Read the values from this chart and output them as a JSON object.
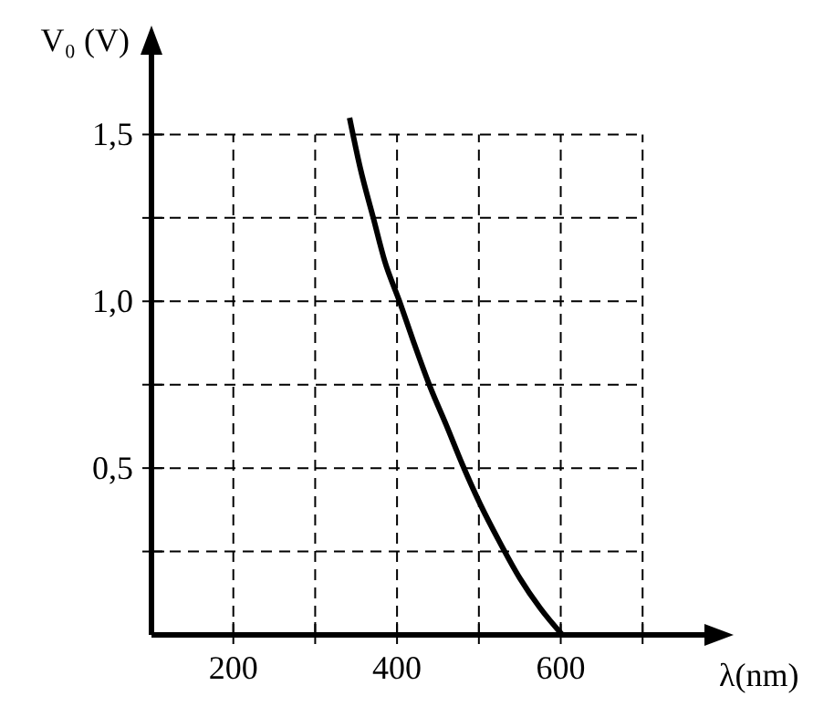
{
  "chart_data": {
    "type": "line",
    "xlabel": "λ(nm)",
    "ylabel": "V₀ (V)",
    "x": [
      342,
      355,
      371,
      385,
      403,
      420,
      441,
      460,
      480,
      502,
      525,
      550,
      575,
      602
    ],
    "series": [
      {
        "color": "#000000",
        "values": [
          1.55,
          1.4,
          1.25,
          1.12,
          1.0,
          0.88,
          0.74,
          0.63,
          0.51,
          0.39,
          0.28,
          0.17,
          0.08,
          0.0
        ]
      }
    ],
    "xlim": [
      100,
      780
    ],
    "ylim": [
      0,
      1.75
    ],
    "xticks": [
      {
        "value": 200,
        "label": "200"
      },
      {
        "value": 300,
        "label": null
      },
      {
        "value": 400,
        "label": "400"
      },
      {
        "value": 500,
        "label": null
      },
      {
        "value": 600,
        "label": "600"
      },
      {
        "value": 700,
        "label": null
      }
    ],
    "yticks": [
      {
        "value": 0.25,
        "label": null
      },
      {
        "value": 0.5,
        "label": "0,5"
      },
      {
        "value": 0.75,
        "label": null
      },
      {
        "value": 1.0,
        "label": "1,0"
      },
      {
        "value": 1.25,
        "label": null
      },
      {
        "value": 1.5,
        "label": "1,5"
      }
    ],
    "grid": true,
    "marker": "none",
    "line_style": "solid"
  }
}
